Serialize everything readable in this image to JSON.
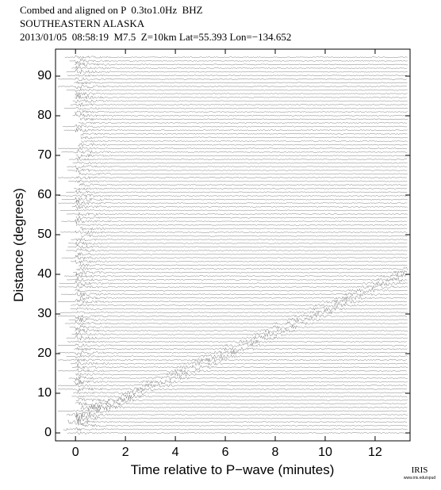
{
  "header": {
    "line1": "Combed and aligned on P  0.3to1.0Hz  BHZ",
    "line2": "SOUTHEASTERN ALASKA",
    "line3": "2013/01/05  08:58:19  M7.5  Z=10km Lat=55.393 Lon=−134.652"
  },
  "chart_data": {
    "type": "record-section",
    "xlabel": "Time relative to P−wave (minutes)",
    "ylabel": "Distance (degrees)",
    "xlim": [
      -0.8,
      13.4
    ],
    "ylim": [
      -2,
      96.8
    ],
    "xticks": [
      0,
      2,
      4,
      6,
      8,
      10,
      12
    ],
    "yticks": [
      0,
      10,
      20,
      30,
      40,
      50,
      60,
      70,
      80,
      90
    ],
    "color": "#444444"
  },
  "logo": {
    "name": "IRIS",
    "url": "www.iris.edu/spud"
  }
}
